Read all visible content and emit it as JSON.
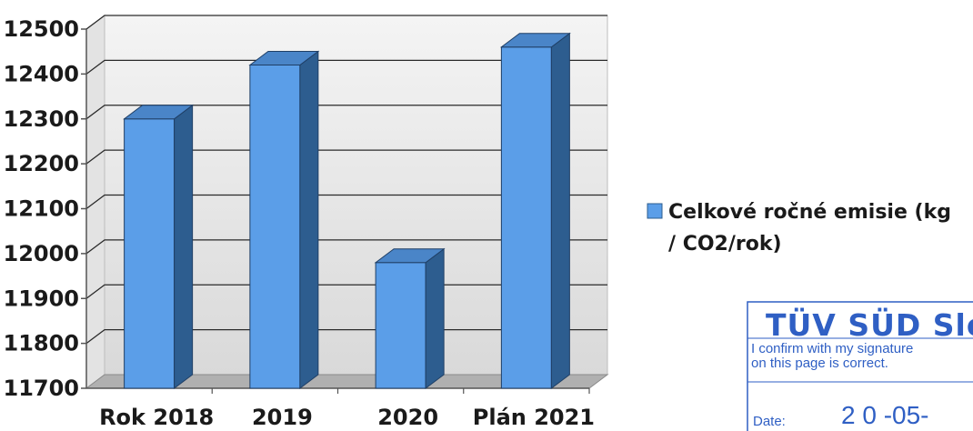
{
  "chart_data": {
    "type": "bar",
    "categories": [
      "Rok 2018",
      "2019",
      "2020",
      "Plán 2021"
    ],
    "series": [
      {
        "name": "Celkové ročné emisie  (kg / CO2/rok)",
        "values": [
          12300,
          12420,
          11980,
          12460
        ]
      }
    ],
    "ylim": [
      11700,
      12500
    ],
    "yticks": [
      11700,
      11800,
      11900,
      12000,
      12100,
      12200,
      12300,
      12400,
      12500
    ],
    "grid": true,
    "legend": "right",
    "bar_color": "#5b9ee8",
    "bar_side_color": "#2d5d8f",
    "bar_top_color": "#4a85c8"
  },
  "legend": {
    "line1": "Celkové ročné emisie  (kg",
    "line2": "/ CO2/rok)"
  },
  "stamp": {
    "title": "TÜV SÜD Slov",
    "line1": "I confirm with my signature",
    "line2": "on this page is correct.",
    "date_label": "Date:",
    "date_value": "2 0 -05-",
    "color": "#2f5fc4"
  }
}
